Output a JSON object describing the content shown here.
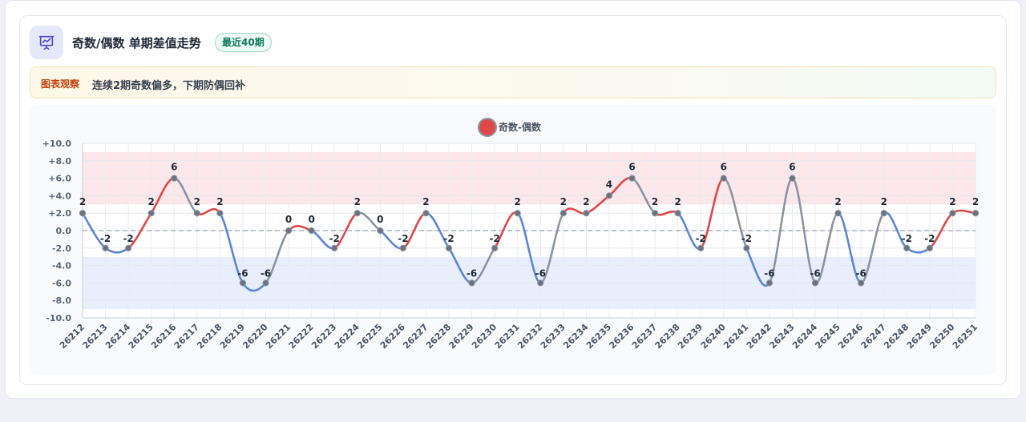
{
  "header": {
    "title": "奇数/偶数 单期差值走势",
    "badge": "最近40期",
    "icon": "presentation-chart-icon"
  },
  "insight": {
    "label": "图表观察",
    "text": "连续2期奇数偏多，下期防偶回补"
  },
  "colors": {
    "positive": "#e04848",
    "negative": "#5b86d6",
    "neutral": "#8a94a3",
    "legend_dot": "#e04848",
    "positive_band": "#fbe3e6",
    "negative_band": "#e4ebfa"
  },
  "chart_data": {
    "type": "line",
    "title": "",
    "legend_position": "top-center",
    "grid": true,
    "ylim": [
      -10,
      10
    ],
    "yticks": [
      "+10.0",
      "+8.0",
      "+6.0",
      "+4.0",
      "+2.0",
      "0.0",
      "-2.0",
      "-4.0",
      "-6.0",
      "-8.0",
      "-10.0"
    ],
    "bands": [
      {
        "from": 3,
        "to": 9,
        "tone": "positive"
      },
      {
        "from": -9,
        "to": -3,
        "tone": "negative"
      }
    ],
    "categories": [
      "26212",
      "26213",
      "26214",
      "26215",
      "26216",
      "26217",
      "26218",
      "26219",
      "26220",
      "26221",
      "26222",
      "26223",
      "26224",
      "26225",
      "26226",
      "26227",
      "26228",
      "26229",
      "26230",
      "26231",
      "26232",
      "26233",
      "26234",
      "26235",
      "26236",
      "26237",
      "26238",
      "26239",
      "26240",
      "26241",
      "26242",
      "26243",
      "26244",
      "26245",
      "26246",
      "26247",
      "26248",
      "26249",
      "26250",
      "26251"
    ],
    "series": [
      {
        "name": "奇数-偶数",
        "values": [
          2,
          -2,
          -2,
          2,
          6,
          2,
          2,
          -6,
          -6,
          0,
          0,
          -2,
          2,
          0,
          -2,
          2,
          -2,
          -6,
          -2,
          2,
          -6,
          2,
          2,
          4,
          6,
          2,
          2,
          -2,
          6,
          -2,
          -6,
          6,
          -6,
          2,
          -6,
          2,
          -2,
          -2,
          2,
          2
        ]
      }
    ]
  }
}
